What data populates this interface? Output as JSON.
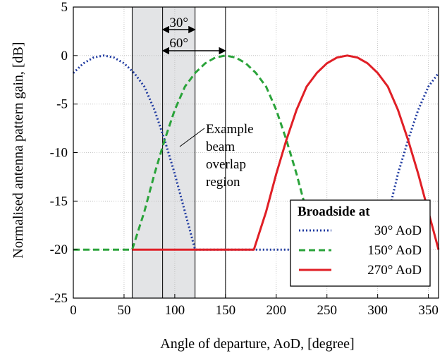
{
  "chart_data": {
    "type": "line",
    "xlabel": "Angle of departure, AoD,  [degree]",
    "ylabel": "Normalised antenna pattern gain, [dB]",
    "xlim": [
      0,
      360
    ],
    "ylim": [
      -25,
      5
    ],
    "xticks": [
      0,
      50,
      100,
      150,
      200,
      250,
      300,
      350
    ],
    "yticks": [
      5,
      0,
      -5,
      -10,
      -15,
      -20,
      -25
    ],
    "grid": true,
    "legend": {
      "title": "Broadside at",
      "placement": "bottom-right",
      "entries": [
        "30° AoD",
        "150° AoD",
        "270° AoD"
      ]
    },
    "series": [
      {
        "name": "30° AoD",
        "style": "dotted",
        "color": "#1f3aa0",
        "x": [
          0,
          10,
          20,
          30,
          40,
          50,
          60,
          70,
          80,
          90,
          100,
          110,
          120,
          130,
          150,
          170,
          180,
          200,
          220,
          240,
          260,
          280,
          300,
          310,
          320,
          330,
          340,
          350,
          360
        ],
        "y": [
          -1.8,
          -0.8,
          -0.2,
          0,
          -0.2,
          -0.8,
          -1.8,
          -3.2,
          -5.6,
          -8.7,
          -12.2,
          -16.1,
          -20,
          -20,
          -20,
          -20,
          -20,
          -20,
          -20,
          -20,
          -20,
          -20,
          -20,
          -16.5,
          -12.2,
          -8.7,
          -5.6,
          -3.2,
          -1.8
        ]
      },
      {
        "name": "150° AoD",
        "style": "dashed",
        "color": "#2aa33a",
        "x": [
          0,
          20,
          40,
          58,
          70,
          80,
          90,
          100,
          110,
          120,
          130,
          140,
          150,
          160,
          170,
          180,
          190,
          200,
          210,
          220,
          230,
          242
        ],
        "y": [
          -20,
          -20,
          -20,
          -20,
          -16.1,
          -12.2,
          -8.7,
          -5.6,
          -3.2,
          -1.8,
          -0.8,
          -0.2,
          0,
          -0.2,
          -0.8,
          -1.8,
          -3.2,
          -5.6,
          -8.7,
          -12.2,
          -16.1,
          -20
        ]
      },
      {
        "name": "270° AoD",
        "style": "solid",
        "color": "#e01f26",
        "x": [
          58,
          100,
          140,
          178,
          190,
          200,
          210,
          220,
          230,
          240,
          250,
          260,
          270,
          280,
          290,
          300,
          310,
          320,
          330,
          340,
          350,
          360
        ],
        "y": [
          -20,
          -20,
          -20,
          -20,
          -16.1,
          -12.2,
          -8.7,
          -5.6,
          -3.2,
          -1.8,
          -0.8,
          -0.2,
          0,
          -0.2,
          -0.8,
          -1.8,
          -3.2,
          -5.6,
          -8.7,
          -12.2,
          -16.1,
          -20
        ]
      }
    ],
    "shaded_region": {
      "x": [
        58,
        120
      ],
      "color": "#e3e4e6"
    },
    "vertical_lines": [
      88,
      120,
      150
    ],
    "annotations": {
      "region_label": [
        "Example",
        "beam",
        "overlap",
        "region"
      ],
      "arrow_30": "30°",
      "arrow_60": "60°"
    }
  }
}
